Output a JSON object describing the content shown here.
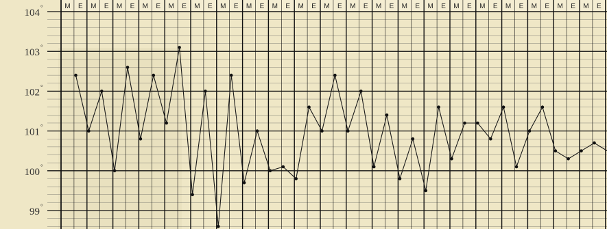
{
  "chart_data": {
    "type": "line",
    "title": "",
    "xlabel": "",
    "ylabel": "",
    "column_labels": [
      "M",
      "E",
      "M",
      "E",
      "M",
      "E",
      "M",
      "E",
      "M",
      "E",
      "M",
      "E",
      "M",
      "E",
      "M",
      "E",
      "M",
      "E",
      "M",
      "E",
      "M",
      "E",
      "M",
      "E",
      "M",
      "E",
      "M",
      "E",
      "M",
      "E",
      "M",
      "E",
      "M",
      "E",
      "M",
      "E",
      "M",
      "E",
      "M",
      "E",
      "M",
      "E"
    ],
    "y_ticks": [
      {
        "value": 104,
        "label": "104"
      },
      {
        "value": 103,
        "label": "103"
      },
      {
        "value": 102,
        "label": "102"
      },
      {
        "value": 101,
        "label": "101"
      },
      {
        "value": 100,
        "label": "100"
      },
      {
        "value": 99,
        "label": "99"
      }
    ],
    "degree_mark": "°",
    "ylim": [
      98.55,
      104.25
    ],
    "grid": true,
    "series": [
      {
        "values": [
          102.4,
          101.0,
          102.0,
          100.0,
          102.6,
          100.8,
          102.4,
          101.2,
          103.1,
          99.4,
          102.0,
          98.6,
          102.4,
          99.7,
          101.0,
          100.0,
          100.1,
          99.8,
          101.6,
          101.0,
          102.4,
          101.0,
          102.0,
          100.1,
          101.4,
          99.8,
          100.8,
          99.5,
          101.6,
          100.3,
          101.2,
          101.2,
          100.8,
          101.6,
          100.1,
          101.0,
          101.6,
          100.5,
          100.3,
          100.5,
          100.7,
          100.5
        ]
      }
    ]
  }
}
